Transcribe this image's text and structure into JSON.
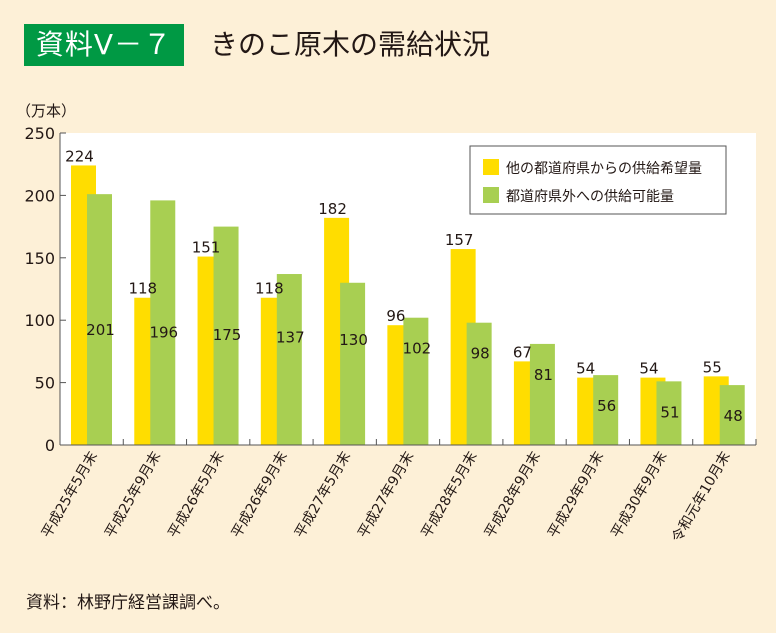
{
  "header": {
    "badge": "資料Ⅴ－７",
    "title": "きのこ原木の需給状況"
  },
  "source_note": "資料：林野庁経営課調べ。",
  "colors": {
    "background": "#fdf0d7",
    "badge": "#009944",
    "demand": "#ffdd00",
    "supply": "#a8cf52"
  },
  "chart_data": {
    "type": "bar",
    "title": "きのこ原木の需給状況",
    "xlabel": "",
    "ylabel": "（万本）",
    "ylim": [
      0,
      250
    ],
    "yticks": [
      0,
      50,
      100,
      150,
      200,
      250
    ],
    "grid": false,
    "legend_position": "top-right",
    "categories": [
      "平成25年5月末",
      "平成25年9月末",
      "平成26年5月末",
      "平成26年9月末",
      "平成27年5月末",
      "平成27年9月末",
      "平成28年5月末",
      "平成28年9月末",
      "平成29年9月末",
      "平成30年9月末",
      "令和元年10月末"
    ],
    "series": [
      {
        "name": "他の都道府県からの供給希望量",
        "color": "#ffdd00",
        "values": [
          224,
          118,
          151,
          118,
          182,
          96,
          157,
          67,
          54,
          54,
          55
        ]
      },
      {
        "name": "都道府県外への供給可能量",
        "color": "#a8cf52",
        "values": [
          201,
          196,
          175,
          137,
          130,
          102,
          98,
          81,
          56,
          51,
          48
        ]
      }
    ]
  }
}
